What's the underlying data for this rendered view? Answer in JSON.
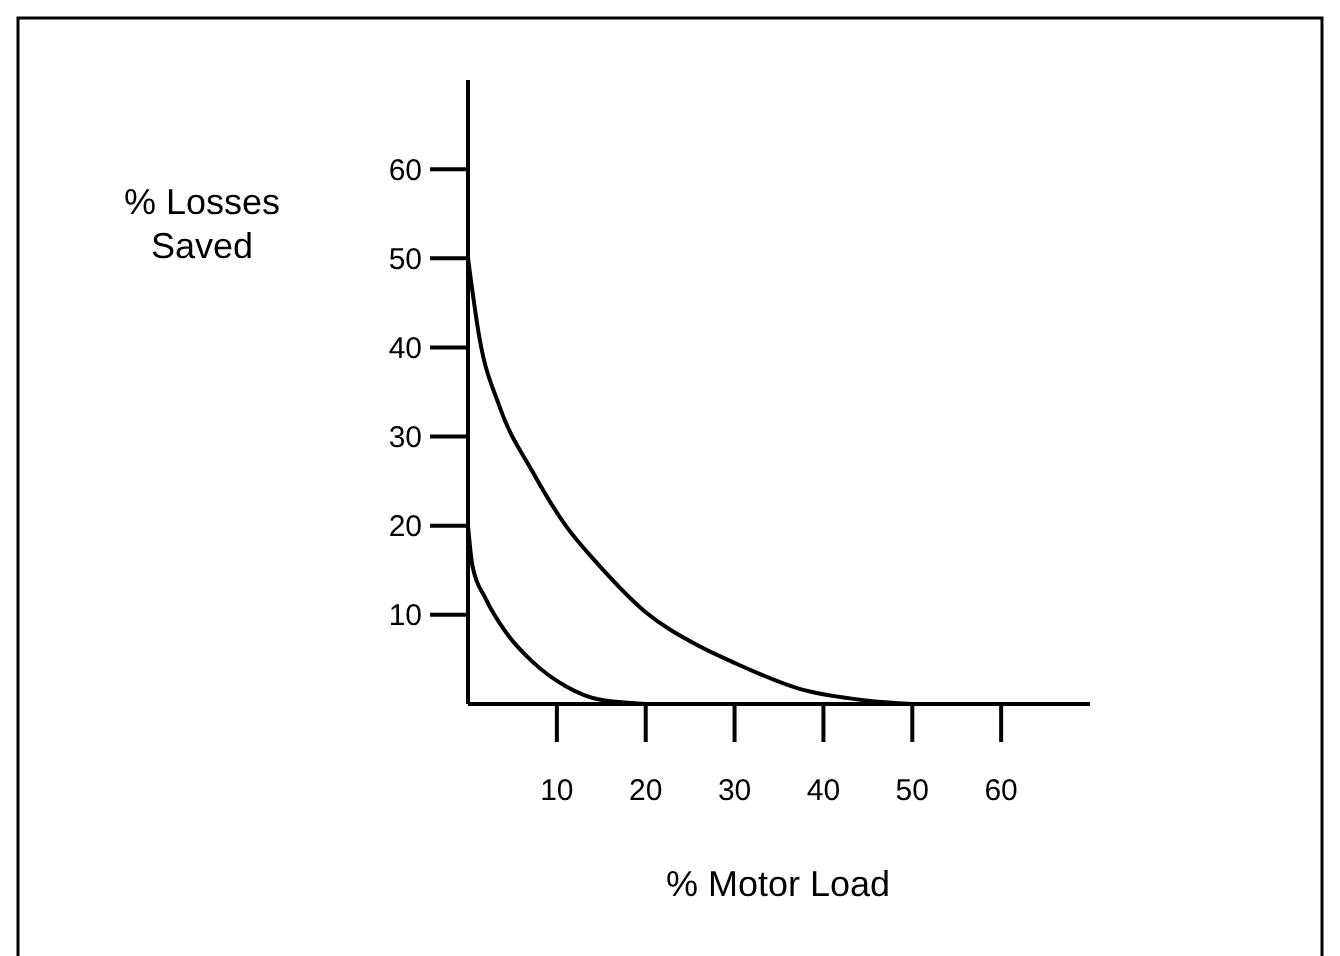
{
  "chart_data": {
    "type": "line",
    "xlabel": "% Motor Load",
    "ylabel": "% Losses\nSaved",
    "xlim": [
      0,
      70
    ],
    "ylim": [
      0,
      70
    ],
    "xticks": [
      {
        "value": 0,
        "label": null
      },
      10,
      20,
      30,
      40,
      50,
      60
    ],
    "yticks": [
      {
        "value": 0,
        "label": null
      },
      10,
      20,
      30,
      40,
      50,
      60
    ],
    "grid": false,
    "marker": "none",
    "line_style": "solid",
    "series": [
      {
        "color": "#000000",
        "x": [
          0,
          1.3,
          3.5,
          7.3,
          11,
          14.8,
          20,
          26,
          29.8,
          37.3,
          44.8,
          50
        ],
        "values": [
          50,
          41,
          33.5,
          26,
          20,
          15.5,
          10.3,
          6.5,
          4.7,
          1.7,
          0.4,
          0
        ]
      },
      {
        "color": "#000000",
        "x": [
          0,
          0.5,
          2,
          4.3,
          7.3,
          11,
          14.8,
          20
        ],
        "values": [
          20,
          15.5,
          11.8,
          8,
          4.7,
          2,
          0.5,
          0
        ]
      }
    ]
  }
}
